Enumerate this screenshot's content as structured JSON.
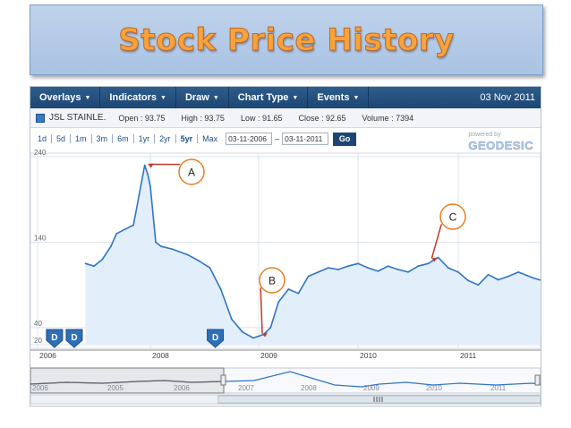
{
  "slide": {
    "title": "Stock Price History"
  },
  "toolbar": {
    "menus": [
      "Overlays",
      "Indicators",
      "Draw",
      "Chart Type",
      "Events"
    ],
    "date": "03 Nov 2011"
  },
  "quote": {
    "symbol": "JSL STAINLE.",
    "open": "Open : 93.75",
    "high": "High : 93.75",
    "low": "Low : 91.65",
    "close": "Close : 92.65",
    "volume": "Volume : 7394"
  },
  "range": {
    "buttons": [
      "1d",
      "5d",
      "1m",
      "3m",
      "6m",
      "1yr",
      "2yr",
      "5yr",
      "Max"
    ],
    "active": "5yr",
    "from": "03-11-2006",
    "to": "03-11-2011",
    "go": "Go"
  },
  "branding": {
    "powered": "powered by",
    "name": "GEODESIC"
  },
  "chart_data": {
    "type": "area",
    "y_ticks": [
      "240",
      "140",
      "40",
      "20"
    ],
    "x_labels": [
      "2006",
      "2008",
      "2009",
      "2010",
      "2011"
    ],
    "ylim": [
      20,
      240
    ],
    "series": [
      {
        "x": [
          2006.85,
          2007.0,
          2007.15,
          2007.3,
          2007.4,
          2007.55,
          2007.7,
          2007.8,
          2007.9,
          2007.95,
          2008.0,
          2008.05,
          2008.1,
          2008.2,
          2008.35,
          2008.45,
          2008.55,
          2008.65,
          2008.75,
          2008.85,
          2008.95,
          2009.0,
          2009.05,
          2009.12,
          2009.2,
          2009.3,
          2009.4,
          2009.5,
          2009.6,
          2009.7,
          2009.8,
          2009.9,
          2010.0,
          2010.1,
          2010.2,
          2010.3,
          2010.4,
          2010.5,
          2010.6,
          2010.7,
          2010.8,
          2010.9,
          2011.0,
          2011.1,
          2011.2,
          2011.3,
          2011.4,
          2011.5,
          2011.6,
          2011.75,
          2011.84
        ],
        "values": [
          115,
          112,
          120,
          135,
          150,
          155,
          160,
          195,
          230,
          220,
          205,
          140,
          135,
          132,
          125,
          118,
          110,
          85,
          50,
          35,
          28,
          30,
          32,
          40,
          70,
          85,
          80,
          100,
          105,
          110,
          108,
          112,
          115,
          110,
          106,
          112,
          108,
          105,
          112,
          115,
          122,
          110,
          105,
          95,
          90,
          102,
          96,
          100,
          105,
          98,
          95
        ]
      }
    ],
    "annotations": [
      {
        "label": "A",
        "x": 2007.9,
        "y": 228
      },
      {
        "label": "B",
        "x": 2009.0,
        "y": 30
      },
      {
        "label": "C",
        "x": 2010.7,
        "y": 118
      }
    ],
    "event_markers": [
      {
        "label": "D",
        "x": 2006.3
      },
      {
        "label": "D",
        "x": 2006.65
      },
      {
        "label": "D",
        "x": 2008.6
      }
    ],
    "navigator_labels": [
      "2006",
      "2005",
      "2006",
      "2007",
      "2008",
      "2009",
      "2010",
      "2011"
    ]
  }
}
